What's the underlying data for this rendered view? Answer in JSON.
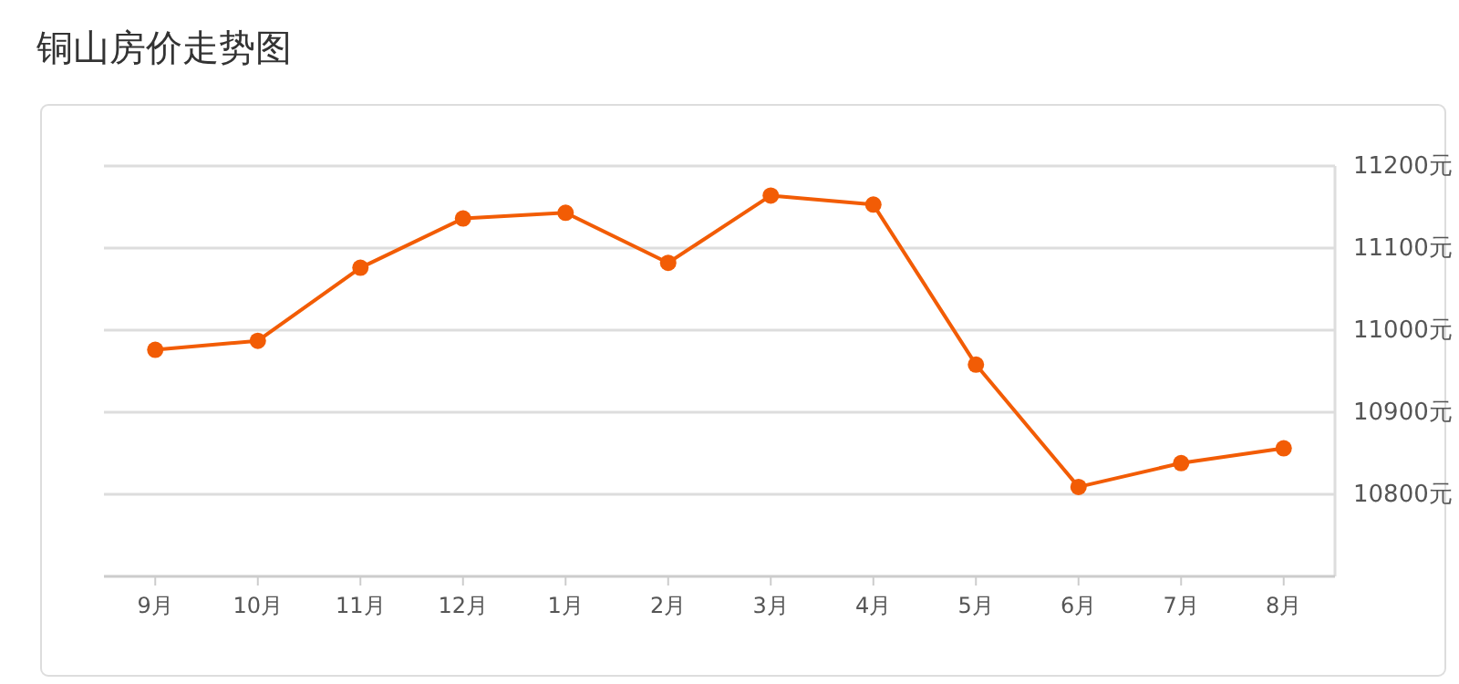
{
  "chart_data": {
    "type": "line",
    "title": "铜山房价走势图",
    "categories": [
      "9月",
      "10月",
      "11月",
      "12月",
      "1月",
      "2月",
      "3月",
      "4月",
      "5月",
      "6月",
      "7月",
      "8月"
    ],
    "series": [
      {
        "color": "#f25c05",
        "values": [
          10976,
          10987,
          11076,
          11136,
          11143,
          11082,
          11164,
          11153,
          10958,
          10809,
          10838,
          10856
        ]
      }
    ],
    "ylim": [
      10700,
      11200
    ],
    "yticks": [
      {
        "value": 10800,
        "label": "10800元"
      },
      {
        "value": 10900,
        "label": "10900元"
      },
      {
        "value": 11000,
        "label": "11000元"
      },
      {
        "value": 11100,
        "label": "11100元"
      },
      {
        "value": 11200,
        "label": "11200元"
      }
    ],
    "grid": "y",
    "marker": "circle",
    "line_style": "solid"
  }
}
